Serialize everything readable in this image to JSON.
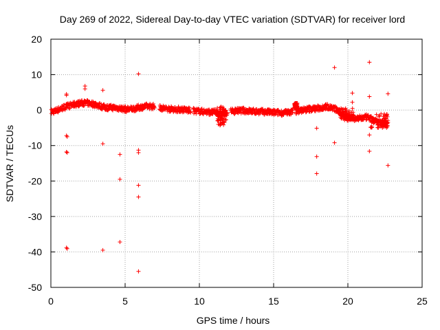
{
  "chart_data": {
    "type": "scatter",
    "title": "Day 269 of 2022, Sidereal Day-to-day VTEC variation (SDTVAR) for receiver lord",
    "xlabel": "GPS time / hours",
    "ylabel": "SDTVAR / TECUs",
    "xlim": [
      0,
      25
    ],
    "ylim": [
      -50,
      20
    ],
    "xticks": [
      0,
      5,
      10,
      15,
      20,
      25
    ],
    "yticks": [
      20,
      10,
      0,
      -10,
      -20,
      -30,
      -40,
      -50
    ],
    "grid": true,
    "marker": "+",
    "color": "#ff0000",
    "series": [
      {
        "name": "SDTVAR",
        "trend": [
          [
            0.05,
            -0.5
          ],
          [
            0.3,
            -0.2
          ],
          [
            0.6,
            0.3
          ],
          [
            0.9,
            0.8
          ],
          [
            1.2,
            1.2
          ],
          [
            1.5,
            1.5
          ],
          [
            1.8,
            1.8
          ],
          [
            2.1,
            2.0
          ],
          [
            2.4,
            2.0
          ],
          [
            2.7,
            1.8
          ],
          [
            3.0,
            1.6
          ],
          [
            3.3,
            1.2
          ],
          [
            3.6,
            0.8
          ],
          [
            3.9,
            0.7
          ],
          [
            4.2,
            0.7
          ],
          [
            4.5,
            0.6
          ],
          [
            4.8,
            0.4
          ],
          [
            5.1,
            0.2
          ],
          [
            5.4,
            0.3
          ],
          [
            5.7,
            0.5
          ],
          [
            6.0,
            0.8
          ],
          [
            6.3,
            1.0
          ],
          [
            6.6,
            1.1
          ],
          [
            6.9,
            1.0
          ],
          [
            7.2,
            0.8
          ],
          [
            7.5,
            0.6
          ],
          [
            7.8,
            0.4
          ],
          [
            8.1,
            0.3
          ],
          [
            8.4,
            0.2
          ],
          [
            8.7,
            0.2
          ],
          [
            9.0,
            0.1
          ],
          [
            9.3,
            -0.1
          ],
          [
            9.6,
            -0.2
          ],
          [
            9.9,
            -0.3
          ],
          [
            10.2,
            -0.4
          ],
          [
            10.5,
            -0.5
          ],
          [
            10.8,
            -0.6
          ],
          [
            11.1,
            -0.6
          ],
          [
            11.4,
            -1.0
          ],
          [
            11.7,
            -0.8
          ],
          [
            12.0,
            -0.5
          ],
          [
            12.3,
            -0.3
          ],
          [
            12.6,
            -0.2
          ],
          [
            12.9,
            -0.1
          ],
          [
            13.2,
            -0.2
          ],
          [
            13.5,
            -0.3
          ],
          [
            13.8,
            -0.4
          ],
          [
            14.1,
            -0.4
          ],
          [
            14.4,
            -0.5
          ],
          [
            14.7,
            -0.6
          ],
          [
            15.0,
            -0.7
          ],
          [
            15.3,
            -0.7
          ],
          [
            15.6,
            -0.8
          ],
          [
            15.9,
            -0.7
          ],
          [
            16.2,
            -0.5
          ],
          [
            16.5,
            -0.3
          ],
          [
            16.8,
            -0.1
          ],
          [
            17.1,
            0.1
          ],
          [
            17.4,
            0.3
          ],
          [
            17.7,
            0.4
          ],
          [
            18.0,
            0.5
          ],
          [
            18.3,
            0.8
          ],
          [
            18.6,
            1.0
          ],
          [
            18.9,
            0.7
          ],
          [
            19.2,
            0.2
          ],
          [
            19.5,
            -0.8
          ],
          [
            19.8,
            -1.6
          ],
          [
            20.1,
            -2.0
          ],
          [
            20.4,
            -2.3
          ],
          [
            20.7,
            -2.4
          ],
          [
            21.0,
            -2.2
          ],
          [
            21.3,
            -2.0
          ],
          [
            21.6,
            -2.6
          ],
          [
            21.9,
            -3.2
          ],
          [
            22.2,
            -3.6
          ],
          [
            22.5,
            -3.8
          ],
          [
            22.7,
            -3.6
          ]
        ],
        "gaps": [
          [
            7.0,
            7.3
          ],
          [
            9.4,
            9.6
          ],
          [
            11.9,
            12.1
          ],
          [
            16.3,
            16.5
          ]
        ],
        "bands": [
          {
            "x": [
              11.2,
              11.8
            ],
            "y": [
              -4.5,
              1.0
            ]
          },
          {
            "x": [
              21.5,
              22.7
            ],
            "y": [
              -5.0,
              -1.0
            ]
          },
          {
            "x": [
              19.4,
              20.4
            ],
            "y": [
              -3.0,
              0.5
            ]
          },
          {
            "x": [
              16.4,
              16.6
            ],
            "y": [
              0.5,
              2.0
            ]
          }
        ],
        "outliers": [
          [
            1.05,
            4.5
          ],
          [
            1.05,
            4.2
          ],
          [
            1.05,
            -7.2
          ],
          [
            1.1,
            -7.5
          ],
          [
            1.05,
            -11.8
          ],
          [
            1.1,
            -12.0
          ],
          [
            1.05,
            -38.8
          ],
          [
            1.1,
            -39.1
          ],
          [
            2.3,
            6.8
          ],
          [
            2.3,
            6.0
          ],
          [
            3.5,
            5.6
          ],
          [
            3.5,
            -9.5
          ],
          [
            3.5,
            -39.5
          ],
          [
            4.65,
            -12.5
          ],
          [
            4.65,
            -19.5
          ],
          [
            4.65,
            -37.2
          ],
          [
            5.9,
            10.2
          ],
          [
            5.9,
            -11.3
          ],
          [
            5.9,
            -12.0
          ],
          [
            5.9,
            -21.2
          ],
          [
            5.9,
            -24.5
          ],
          [
            5.9,
            -45.5
          ],
          [
            17.9,
            -5.1
          ],
          [
            17.9,
            -13.1
          ],
          [
            17.9,
            -17.9
          ],
          [
            19.1,
            12.0
          ],
          [
            19.1,
            -9.2
          ],
          [
            20.3,
            4.8
          ],
          [
            20.3,
            2.2
          ],
          [
            21.45,
            13.5
          ],
          [
            21.45,
            3.8
          ],
          [
            21.45,
            -7.0
          ],
          [
            21.45,
            -11.6
          ],
          [
            22.7,
            4.6
          ],
          [
            22.7,
            -15.6
          ]
        ]
      }
    ]
  }
}
